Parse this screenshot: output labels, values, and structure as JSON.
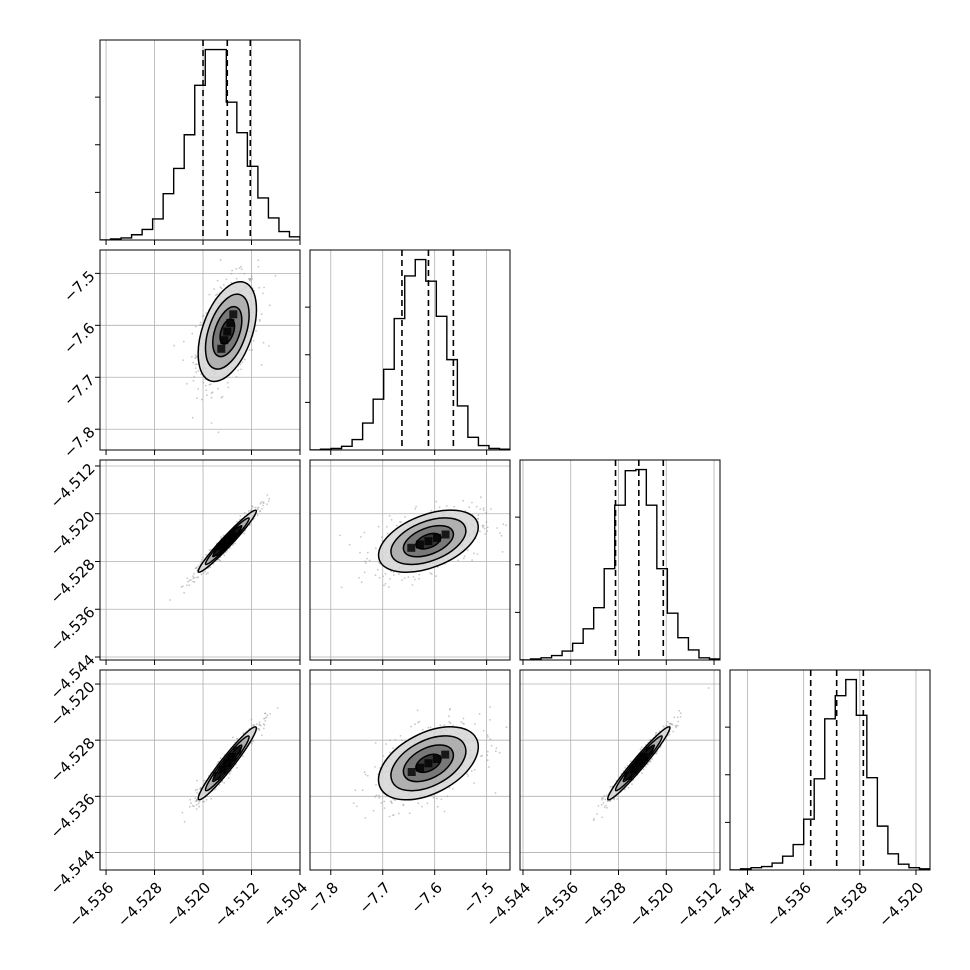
{
  "chart_data": {
    "type": "corner",
    "title": "",
    "parameters": [
      {
        "xticks": [
          "−4.536",
          "−4.528",
          "−4.520",
          "−4.512",
          "−4.504"
        ],
        "tick_values": [
          -4.536,
          -4.528,
          -4.52,
          -4.512,
          -4.504
        ],
        "range": [
          -4.537,
          -4.504
        ],
        "quantiles": [
          -4.52,
          -4.516,
          -4.5122
        ]
      },
      {
        "yticks": [
          "−7.5",
          "−7.6",
          "−7.7",
          "−7.8"
        ],
        "xticks": [
          "−7.8",
          "−7.7",
          "−7.6",
          "−7.5"
        ],
        "tick_values": [
          -7.8,
          -7.7,
          -7.6,
          -7.5
        ],
        "range": [
          -7.84,
          -7.455
        ],
        "quantiles": [
          -7.663,
          -7.612,
          -7.564
        ]
      },
      {
        "yticks": [
          "−4.512",
          "−4.520",
          "−4.528",
          "−4.536",
          "−4.544"
        ],
        "xticks": [
          "−4.544",
          "−4.536",
          "−4.528",
          "−4.520",
          "−4.512"
        ],
        "tick_values": [
          -4.544,
          -4.536,
          -4.528,
          -4.52,
          -4.512
        ],
        "range": [
          -4.5445,
          -4.511
        ],
        "quantiles": [
          -4.5285,
          -4.5246,
          -4.5205
        ]
      },
      {
        "yticks": [
          "−4.544",
          "−4.536",
          "−4.528",
          "−4.520"
        ],
        "xticks": [
          "−4.544",
          "−4.536",
          "−4.528",
          "−4.520"
        ],
        "tick_values": [
          -4.544,
          -4.536,
          -4.528,
          -4.52
        ],
        "range": [
          -4.5465,
          -4.518
        ],
        "quantiles": [
          -4.535,
          -4.5313,
          -4.5275
        ]
      }
    ],
    "histograms": [
      {
        "counts": [
          0,
          1,
          2,
          5,
          10,
          20,
          44,
          68,
          100,
          147,
          181,
          181,
          131,
          102,
          70,
          40,
          21,
          8,
          3
        ]
      },
      {
        "counts": [
          0,
          1,
          2,
          5,
          14,
          36,
          68,
          108,
          176,
          233,
          255,
          226,
          179,
          121,
          59,
          17,
          6,
          2,
          1
        ]
      },
      {
        "counts": [
          0,
          1,
          2,
          4,
          8,
          15,
          28,
          47,
          82,
          139,
          170,
          171,
          139,
          82,
          42,
          20,
          9,
          2,
          1
        ]
      },
      {
        "counts": [
          0,
          1,
          2,
          3,
          6,
          12,
          22,
          44,
          79,
          131,
          151,
          165,
          134,
          80,
          38,
          14,
          5,
          2,
          1
        ]
      }
    ],
    "pairs": [
      {
        "row": 1,
        "col": 0,
        "center": [
          -4.516,
          -7.612
        ],
        "sigma": [
          0.0024,
          0.048
        ],
        "corr": 0.45
      },
      {
        "row": 2,
        "col": 0,
        "center": [
          -4.516,
          -4.5246
        ],
        "sigma": [
          0.0024,
          0.0026
        ],
        "corr": 0.97
      },
      {
        "row": 2,
        "col": 1,
        "center": [
          -7.612,
          -4.5246
        ],
        "sigma": [
          0.048,
          0.0026
        ],
        "corr": 0.45
      },
      {
        "row": 3,
        "col": 0,
        "center": [
          -4.516,
          -4.5313
        ],
        "sigma": [
          0.0024,
          0.0026
        ],
        "corr": 0.96
      },
      {
        "row": 3,
        "col": 1,
        "center": [
          -7.612,
          -4.5313
        ],
        "sigma": [
          0.048,
          0.0026
        ],
        "corr": 0.45
      },
      {
        "row": 3,
        "col": 2,
        "center": [
          -4.5246,
          -4.5313
        ],
        "sigma": [
          0.0026,
          0.0026
        ],
        "corr": 0.97
      }
    ],
    "contour_levels_sigma": [
      0.5,
      1.0,
      1.5,
      2.0
    ],
    "grid": true,
    "colors": {
      "line": "#000000",
      "points": "#9a9a9a",
      "grid": "#b0b0b0"
    }
  }
}
